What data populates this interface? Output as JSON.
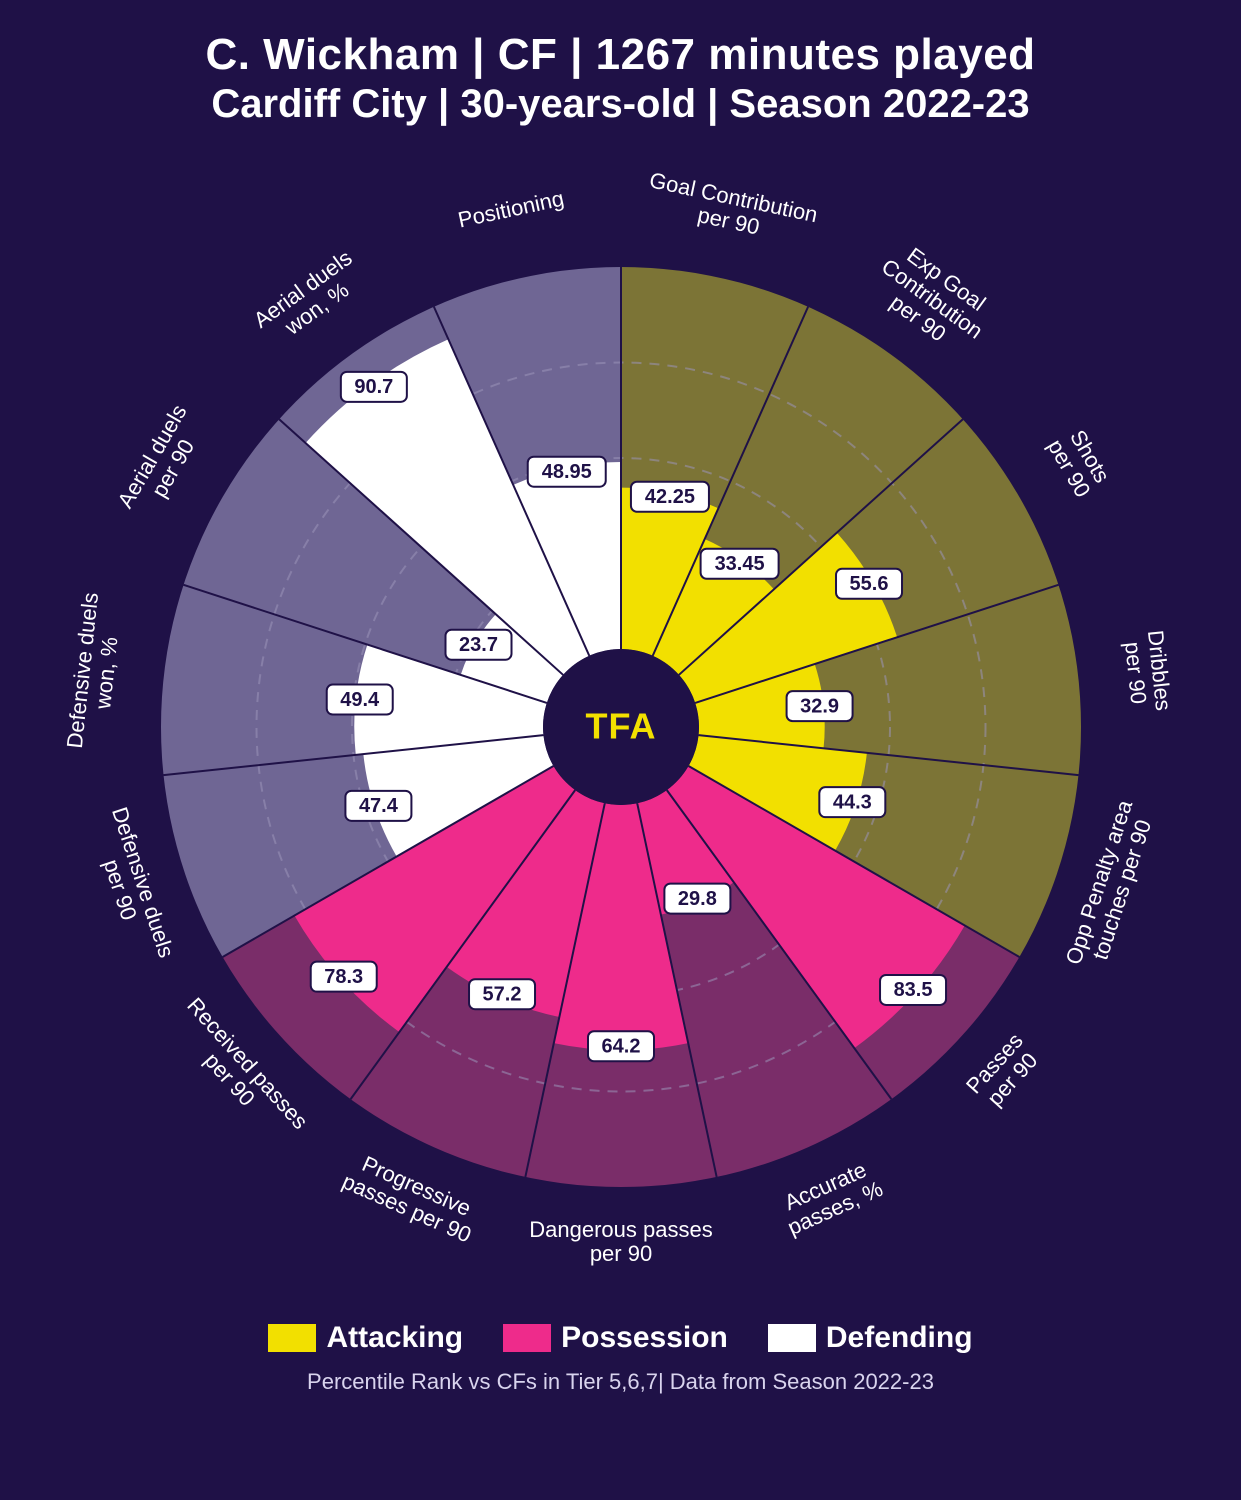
{
  "header": {
    "line1": "C. Wickham | CF | 1267 minutes played",
    "line2": "Cardiff City | 30-years-old | Season 2022-23"
  },
  "footer_text": "Percentile Rank vs CFs in Tier 5,6,7| Data from Season 2022-23",
  "center_logo_text": "TFA",
  "center_logo_color": "#f2e000",
  "background_color": "#1f1147",
  "grid_color": "#9a93b8",
  "chart": {
    "type": "polar-bar",
    "outer_radius": 460,
    "inner_radius": 78,
    "grid_percents": [
      25,
      50,
      75
    ],
    "categories": [
      {
        "name": "Attacking",
        "color": "#f2e000",
        "bg_color": "#7c7436"
      },
      {
        "name": "Possession",
        "color": "#ee2b8b",
        "bg_color": "#7a2d69"
      },
      {
        "name": "Defending",
        "color": "#ffffff",
        "bg_color": "#6f6694"
      }
    ],
    "metrics": [
      {
        "label_lines": [
          "Goal Contribution",
          "per 90"
        ],
        "value": 42.25,
        "cat": 0
      },
      {
        "label_lines": [
          "Exp Goal",
          "Contribution",
          "per 90"
        ],
        "value": 33.45,
        "cat": 0
      },
      {
        "label_lines": [
          "Shots",
          "per 90"
        ],
        "value": 55.6,
        "cat": 0
      },
      {
        "label_lines": [
          "Dribbles",
          "per 90"
        ],
        "value": 32.9,
        "cat": 0
      },
      {
        "label_lines": [
          "Opp Penalty area",
          "touches per 90"
        ],
        "value": 44.3,
        "cat": 0
      },
      {
        "label_lines": [
          "Passes",
          "per 90"
        ],
        "value": 83.5,
        "cat": 1
      },
      {
        "label_lines": [
          "Accurate",
          "passes, %"
        ],
        "value": 29.8,
        "cat": 1
      },
      {
        "label_lines": [
          "Dangerous passes",
          "per 90"
        ],
        "value": 64.2,
        "cat": 1
      },
      {
        "label_lines": [
          "Progressive",
          "passes per 90"
        ],
        "value": 57.2,
        "cat": 1
      },
      {
        "label_lines": [
          "Received passes",
          "per 90"
        ],
        "value": 78.3,
        "cat": 1
      },
      {
        "label_lines": [
          "Defensive duels",
          "per 90"
        ],
        "value": 47.4,
        "cat": 2
      },
      {
        "label_lines": [
          "Defensive duels",
          "won, %"
        ],
        "value": 49.4,
        "cat": 2
      },
      {
        "label_lines": [
          "Aerial duels",
          "per 90"
        ],
        "value": 23.7,
        "cat": 2
      },
      {
        "label_lines": [
          "Aerial duels",
          "won, %"
        ],
        "value": 90.7,
        "cat": 2
      },
      {
        "label_lines": [
          "Positioning"
        ],
        "value": 48.95,
        "cat": 2
      }
    ],
    "label_box": {
      "fill": "#ffffff",
      "stroke": "#1f1147",
      "rx": 6,
      "text_color": "#1f1147",
      "fontsize": 20
    },
    "metric_label_fontsize": 22,
    "metric_label_color": "#ffffff",
    "metric_label_radius": 522
  },
  "legend": {
    "items": [
      {
        "label": "Attacking",
        "color": "#f2e000"
      },
      {
        "label": "Possession",
        "color": "#ee2b8b"
      },
      {
        "label": "Defending",
        "color": "#ffffff"
      }
    ],
    "fontsize": 30
  }
}
